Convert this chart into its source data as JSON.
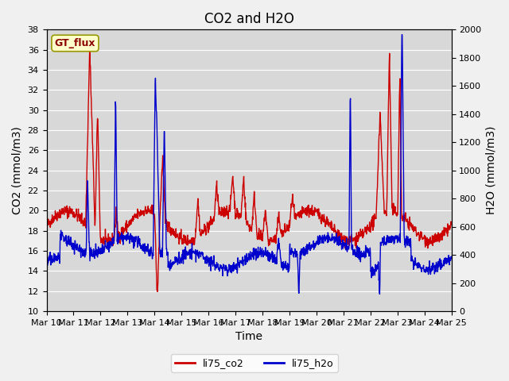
{
  "title": "CO2 and H2O",
  "xlabel": "Time",
  "ylabel_left": "CO2 (mmol/m3)",
  "ylabel_right": "H2O (mmol/m3)",
  "ylim_left": [
    10,
    38
  ],
  "ylim_right": [
    0,
    2000
  ],
  "yticks_left": [
    10,
    12,
    14,
    16,
    18,
    20,
    22,
    24,
    26,
    28,
    30,
    32,
    34,
    36,
    38
  ],
  "yticks_right": [
    0,
    200,
    400,
    600,
    800,
    1000,
    1200,
    1400,
    1600,
    1800,
    2000
  ],
  "xtick_labels": [
    "Mar 10",
    "Mar 11",
    "Mar 12",
    "Mar 13",
    "Mar 14",
    "Mar 15",
    "Mar 16",
    "Mar 17",
    "Mar 18",
    "Mar 19",
    "Mar 20",
    "Mar 21",
    "Mar 22",
    "Mar 23",
    "Mar 24",
    "Mar 25"
  ],
  "co2_color": "#cc0000",
  "h2o_color": "#0000cc",
  "legend_co2": "li75_co2",
  "legend_h2o": "li75_h2o",
  "annotation_text": "GT_flux",
  "bg_color": "#e8e8e8",
  "plot_bg_color": "#d8d8d8",
  "grid_color": "#ffffff",
  "title_fontsize": 12,
  "axis_fontsize": 10,
  "tick_fontsize": 8,
  "linewidth": 1.0
}
